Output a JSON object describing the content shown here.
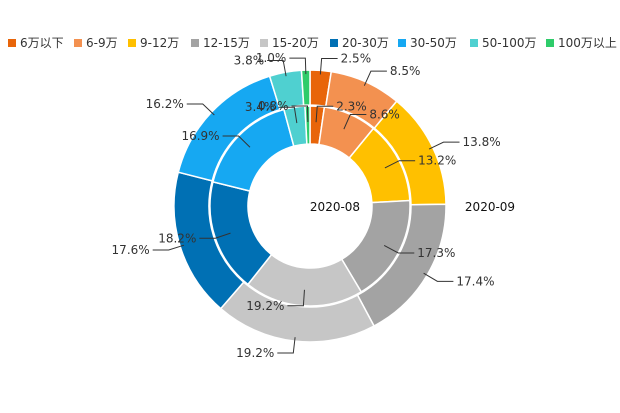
{
  "chart_data": {
    "type": "pie",
    "title": "",
    "categories": [
      "6万以下",
      "6-9万",
      "9-12万",
      "12-15万",
      "15-20万",
      "20-30万",
      "30-50万",
      "50-100万",
      "100万以上"
    ],
    "colors": [
      "#e8650a",
      "#f39150",
      "#ffc000",
      "#a3a3a3",
      "#c6c6c6",
      "#0070b4",
      "#16a8f2",
      "#4fd0d0",
      "#2ecc6a"
    ],
    "series": [
      {
        "name": "2020-08",
        "ring": "inner",
        "values": [
          2.3,
          8.6,
          13.2,
          17.3,
          19.2,
          18.2,
          16.9,
          3.4,
          0.8
        ],
        "labels": [
          "2.3%",
          "8.6%",
          "13.2%",
          "17.3%",
          "19.2%",
          "18.2%",
          "16.9%",
          "3.4%",
          "0.8%"
        ]
      },
      {
        "name": "2020-09",
        "ring": "outer",
        "values": [
          2.5,
          8.5,
          13.8,
          17.4,
          19.2,
          17.6,
          16.2,
          3.8,
          1.0
        ],
        "labels": [
          "2.5%",
          "8.5%",
          "13.8%",
          "17.4%",
          "19.2%",
          "17.6%",
          "16.2%",
          "3.8%",
          "1.0%"
        ]
      }
    ],
    "legend_position": "top"
  }
}
